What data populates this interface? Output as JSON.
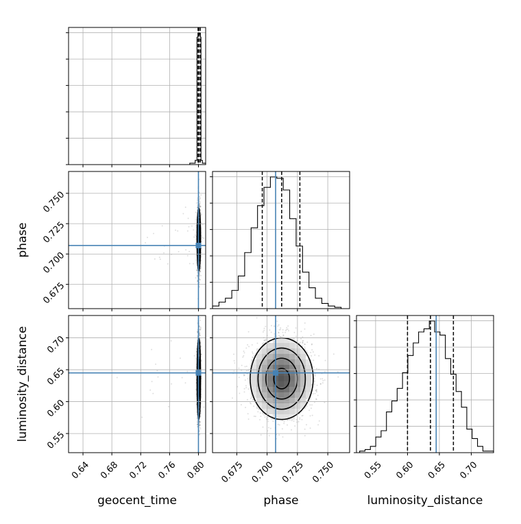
{
  "chart_data": {
    "type": "corner",
    "parameters": [
      "geocent_time",
      "phase",
      "luminosity_distance"
    ],
    "truths": {
      "geocent_time": 0.8,
      "phase": 0.707,
      "luminosity_distance": 0.645
    },
    "truth_color": "#4682b4",
    "quantiles": {
      "geocent_time": [
        0.7995,
        0.8005,
        0.8025
      ],
      "phase": [
        0.696,
        0.712,
        0.727
      ],
      "luminosity_distance": [
        0.6,
        0.636,
        0.672
      ]
    },
    "axes": {
      "geocent_time": {
        "range": [
          0.62,
          0.81
        ],
        "ticks": [
          0.64,
          0.68,
          0.72,
          0.76,
          0.8
        ],
        "tick_labels": [
          "0.64",
          "0.68",
          "0.72",
          "0.76",
          "0.80"
        ]
      },
      "phase": {
        "range": [
          0.655,
          0.768
        ],
        "ticks": [
          0.675,
          0.7,
          0.725,
          0.75
        ],
        "tick_labels": [
          "0.675",
          "0.700",
          "0.725",
          "0.750"
        ]
      },
      "luminosity_distance": {
        "range": [
          0.52,
          0.735
        ],
        "ticks": [
          0.55,
          0.6,
          0.65,
          0.7
        ],
        "tick_labels": [
          "0.55",
          "0.60",
          "0.65",
          "0.70"
        ]
      }
    },
    "histograms": {
      "geocent_time": {
        "bin_edges": [
          0.788,
          0.7955,
          0.798,
          0.7995,
          0.8005,
          0.8015,
          0.8025,
          0.8035,
          0.8055,
          0.81
        ],
        "counts": [
          0.01,
          0.03,
          0.9,
          0.93,
          0.92,
          0.93,
          0.9,
          0.03,
          0.01
        ]
      },
      "phase": {
        "bin_edges": [
          0.655,
          0.6603,
          0.6656,
          0.6709,
          0.6762,
          0.6815,
          0.6868,
          0.6921,
          0.6974,
          0.7027,
          0.708,
          0.7133,
          0.7186,
          0.7239,
          0.7292,
          0.7345,
          0.7398,
          0.7451,
          0.7504,
          0.7557,
          0.761
        ],
        "counts": [
          2,
          5,
          8,
          14,
          25,
          43,
          62,
          79,
          93,
          101,
          100,
          91,
          69,
          48,
          28,
          16,
          8,
          4,
          2,
          1
        ]
      },
      "luminosity_distance": {
        "bin_edges": [
          0.525,
          0.5334,
          0.5418,
          0.5502,
          0.5586,
          0.567,
          0.5754,
          0.5838,
          0.5922,
          0.6006,
          0.609,
          0.6174,
          0.6258,
          0.6342,
          0.6426,
          0.651,
          0.6594,
          0.6678,
          0.6762,
          0.6846,
          0.693,
          0.7014,
          0.7098,
          0.7182,
          0.7266,
          0.735
        ],
        "counts": [
          1,
          2,
          4,
          10,
          14,
          26,
          33,
          41,
          51,
          62,
          70,
          77,
          79,
          84,
          77,
          75,
          60,
          50,
          39,
          29,
          15,
          9,
          4,
          1,
          1
        ]
      }
    }
  }
}
